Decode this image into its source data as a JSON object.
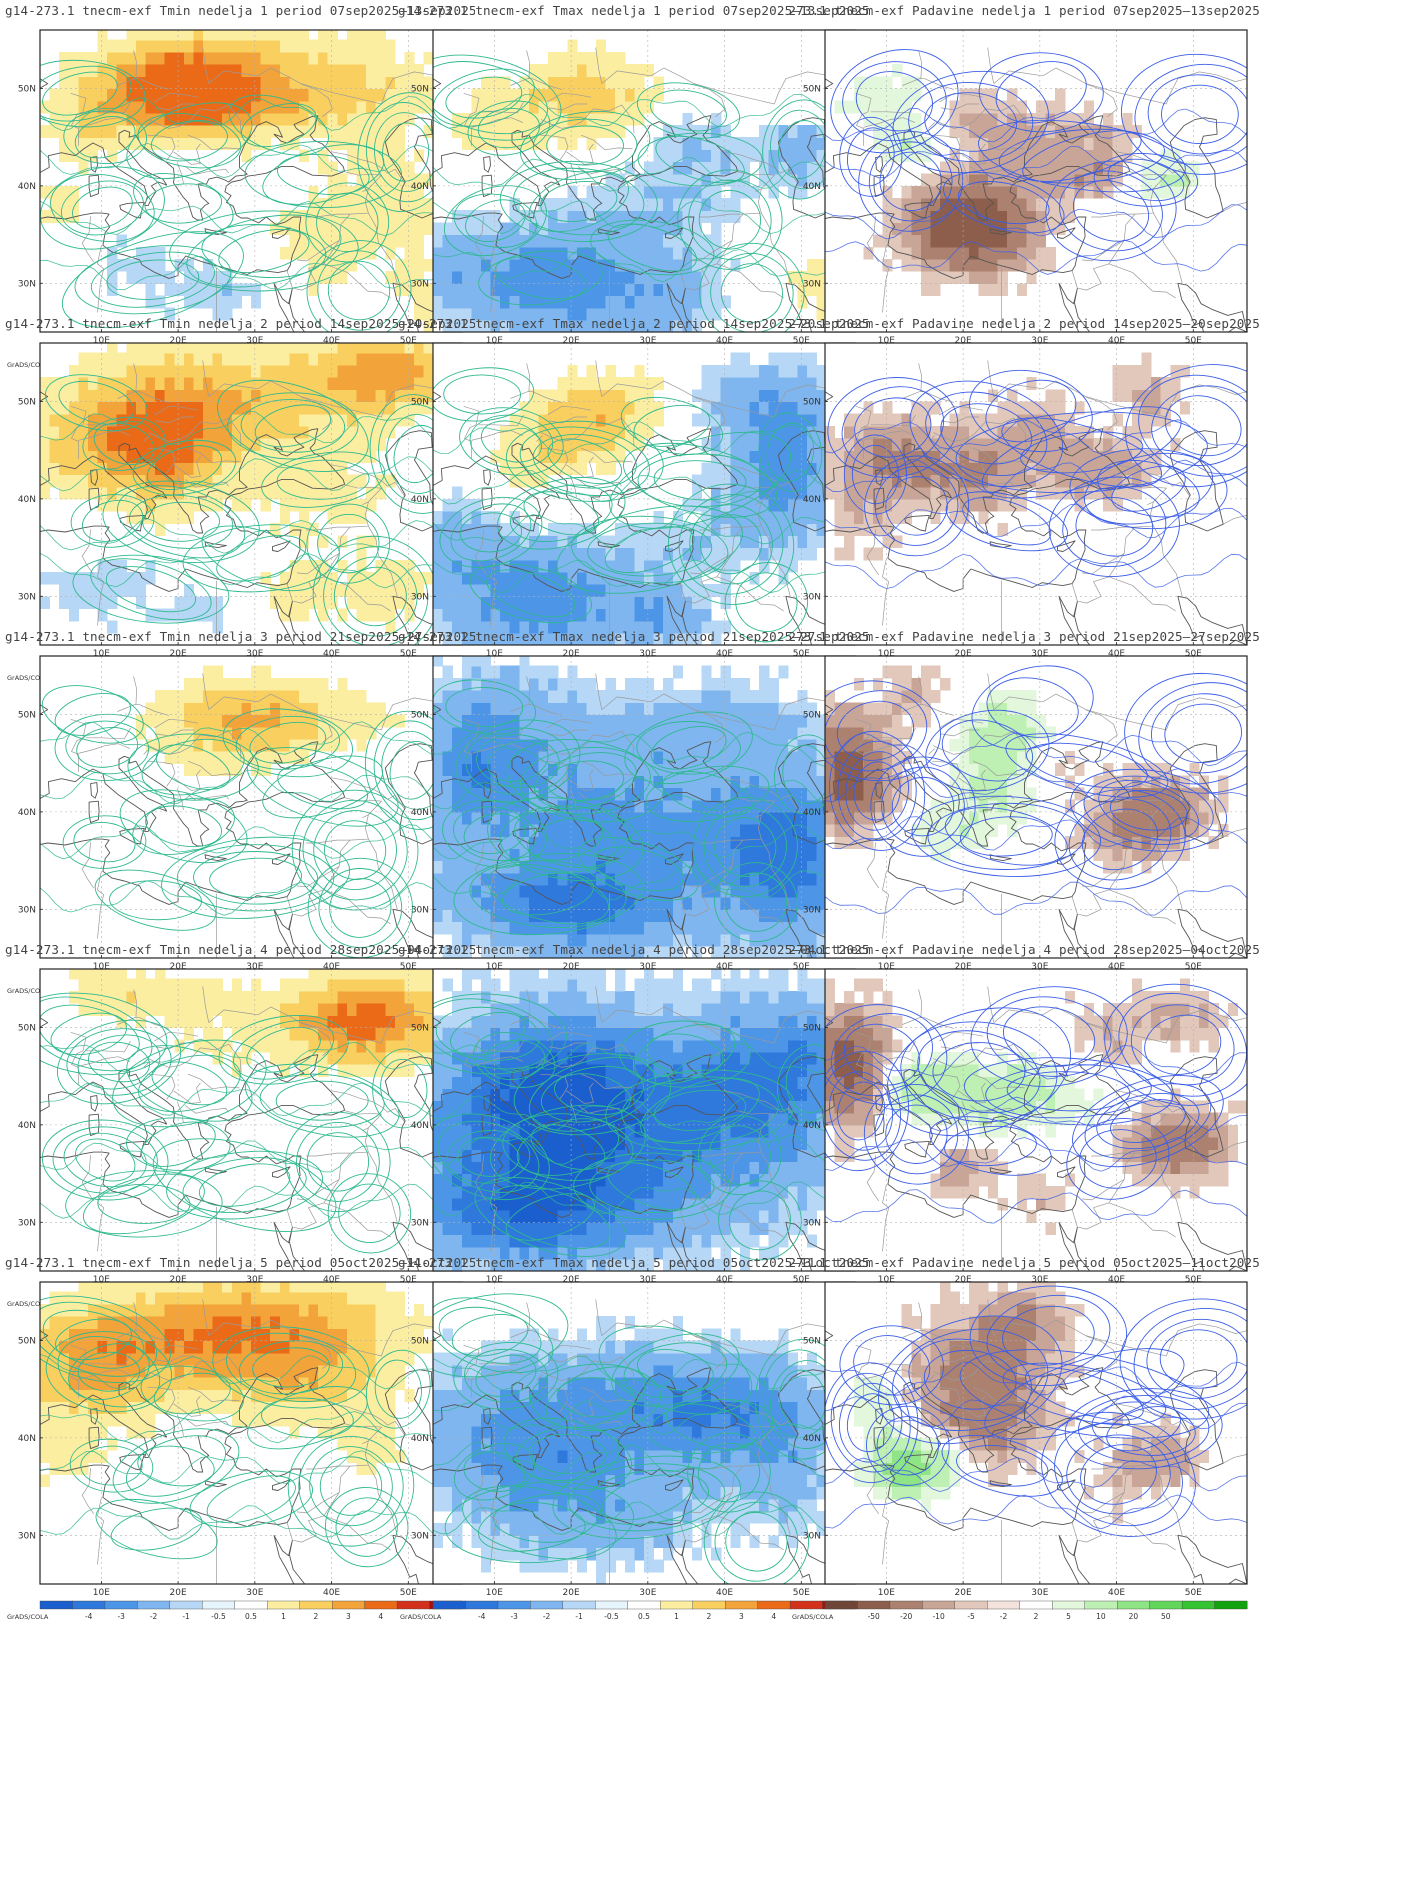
{
  "model": "g14-273.1",
  "experiment": "tnecm-exf",
  "footer_label": "GrADS/COLA",
  "week_word": "nedelja",
  "period_word": "period",
  "variables": [
    "Tmin",
    "Tmax",
    "Padavine"
  ],
  "weeks": [
    {
      "n": "1",
      "period": "07sep2025–13sep2025"
    },
    {
      "n": "2",
      "period": "14sep2025–20sep2025"
    },
    {
      "n": "3",
      "period": "21sep2025–27sep2025"
    },
    {
      "n": "4",
      "period": "28sep2025–04oct2025"
    },
    {
      "n": "5",
      "period": "05oct2025–11oct2025"
    }
  ],
  "map_axes": {
    "lon_ticks": [
      "10E",
      "20E",
      "30E",
      "40E",
      "50E"
    ],
    "lat_ticks": [
      "50N",
      "40N",
      "30N"
    ]
  },
  "legends": {
    "temperature": {
      "tick_labels": [
        "-4",
        "-3",
        "-2",
        "-1",
        "-0.5",
        "0.5",
        "1",
        "2",
        "3",
        "4"
      ],
      "colors": [
        "#1b5fcf",
        "#2f78dc",
        "#4d95e6",
        "#7fb6ef",
        "#b6d7f6",
        "#e6f4fb",
        "#ffffff",
        "#fbeea0",
        "#f9d05f",
        "#f2a33a",
        "#ea6a18",
        "#d2321b",
        "#a80f12"
      ]
    },
    "precipitation": {
      "tick_labels": [
        "-50",
        "-20",
        "-10",
        "-5",
        "-2",
        "2",
        "5",
        "10",
        "20",
        "50"
      ],
      "colors": [
        "#6e4536",
        "#8c5e4b",
        "#ad8170",
        "#c9a597",
        "#e2c7bb",
        "#f4e3dc",
        "#ffffff",
        "#e2f7dc",
        "#bdf0b2",
        "#8fe485",
        "#61d65a",
        "#35c331",
        "#12a10f"
      ]
    }
  },
  "colors": {
    "temp_contour": "#2fb98f",
    "precip_contour": "#3b5ee8",
    "coast": "#555555",
    "border": "#9a9a9a"
  }
}
